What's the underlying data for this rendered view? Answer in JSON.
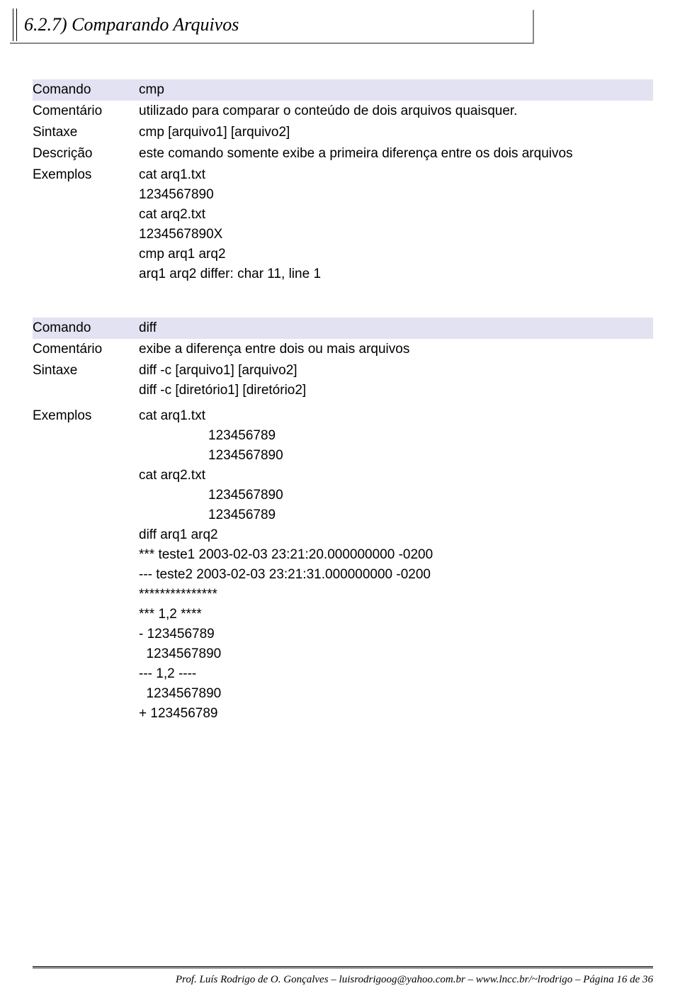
{
  "section_title": "6.2.7) Comparando Arquivos",
  "labels": {
    "comando": "Comando",
    "comentario": "Comentário",
    "sintaxe": "Sintaxe",
    "descricao": "Descrição",
    "exemplos": "Exemplos"
  },
  "block1": {
    "comando": "cmp",
    "comentario": "utilizado para comparar o conteúdo de dois arquivos quaisquer.",
    "sintaxe": "cmp [arquivo1] [arquivo2]",
    "descricao": "este comando somente exibe a primeira diferença entre os dois arquivos",
    "exemplos": [
      "cat arq1.txt",
      "1234567890",
      "cat arq2.txt",
      "1234567890X",
      "cmp arq1 arq2",
      "arq1 arq2 differ: char 11, line 1"
    ]
  },
  "block2": {
    "comando": "diff",
    "comentario": "exibe a diferença entre dois ou mais arquivos",
    "sintaxe": [
      "diff -c [arquivo1]  [arquivo2]",
      "diff -c [diretório1] [diretório2]"
    ],
    "exemplos_top": [
      "cat arq1.txt"
    ],
    "exemplos_indented1": [
      "123456789",
      "1234567890"
    ],
    "exemplos_mid1": [
      "cat arq2.txt"
    ],
    "exemplos_indented2": [
      "1234567890",
      "123456789"
    ],
    "exemplos_bottom": [
      "diff  arq1 arq2",
      "*** teste1      2003-02-03 23:21:20.000000000 -0200",
      "--- teste2      2003-02-03 23:21:31.000000000 -0200",
      "***************",
      "*** 1,2 ****",
      "- 123456789",
      "  1234567890",
      "--- 1,2 ----",
      "  1234567890",
      "+ 123456789"
    ]
  },
  "footer": "Prof. Luís Rodrigo de O. Gonçalves – luisrodrigoog@yahoo.com.br – www.lncc.br/~lrodrigo – Página 16 de 36",
  "colors": {
    "header_bg": "#e2e2f2",
    "text": "#000000",
    "bg": "#ffffff",
    "border_shadow": "#888888"
  },
  "fontsizes": {
    "title": 26,
    "body": 19,
    "footer": 15
  }
}
